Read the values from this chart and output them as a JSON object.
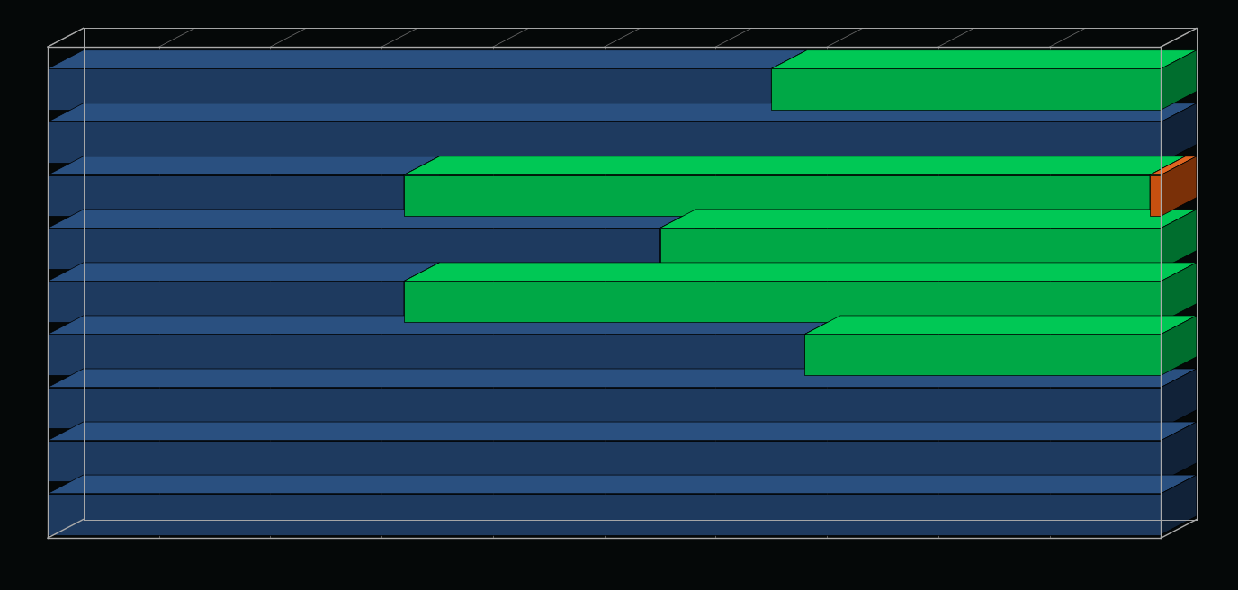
{
  "background_color": "#050808",
  "blue_face": "#1e3a5f",
  "blue_top": "#2a5080",
  "blue_side": "#112238",
  "green_face": "#00a846",
  "green_top": "#00c855",
  "green_side": "#006e2e",
  "orange_face": "#c85010",
  "orange_top": "#e06520",
  "orange_side": "#7a3008",
  "grid_color": "#666666",
  "border_color": "#aaaaaa",
  "n_bars": 9,
  "blue_pct": [
    65,
    100,
    32,
    55,
    32,
    68,
    100,
    100,
    100
  ],
  "green_pct": [
    35,
    0,
    67,
    45,
    68,
    32,
    0,
    0,
    0
  ],
  "orange_pct": [
    0,
    0,
    1,
    0,
    0,
    0,
    0,
    0,
    0
  ],
  "figsize": [
    13.76,
    6.56
  ],
  "dpi": 100
}
